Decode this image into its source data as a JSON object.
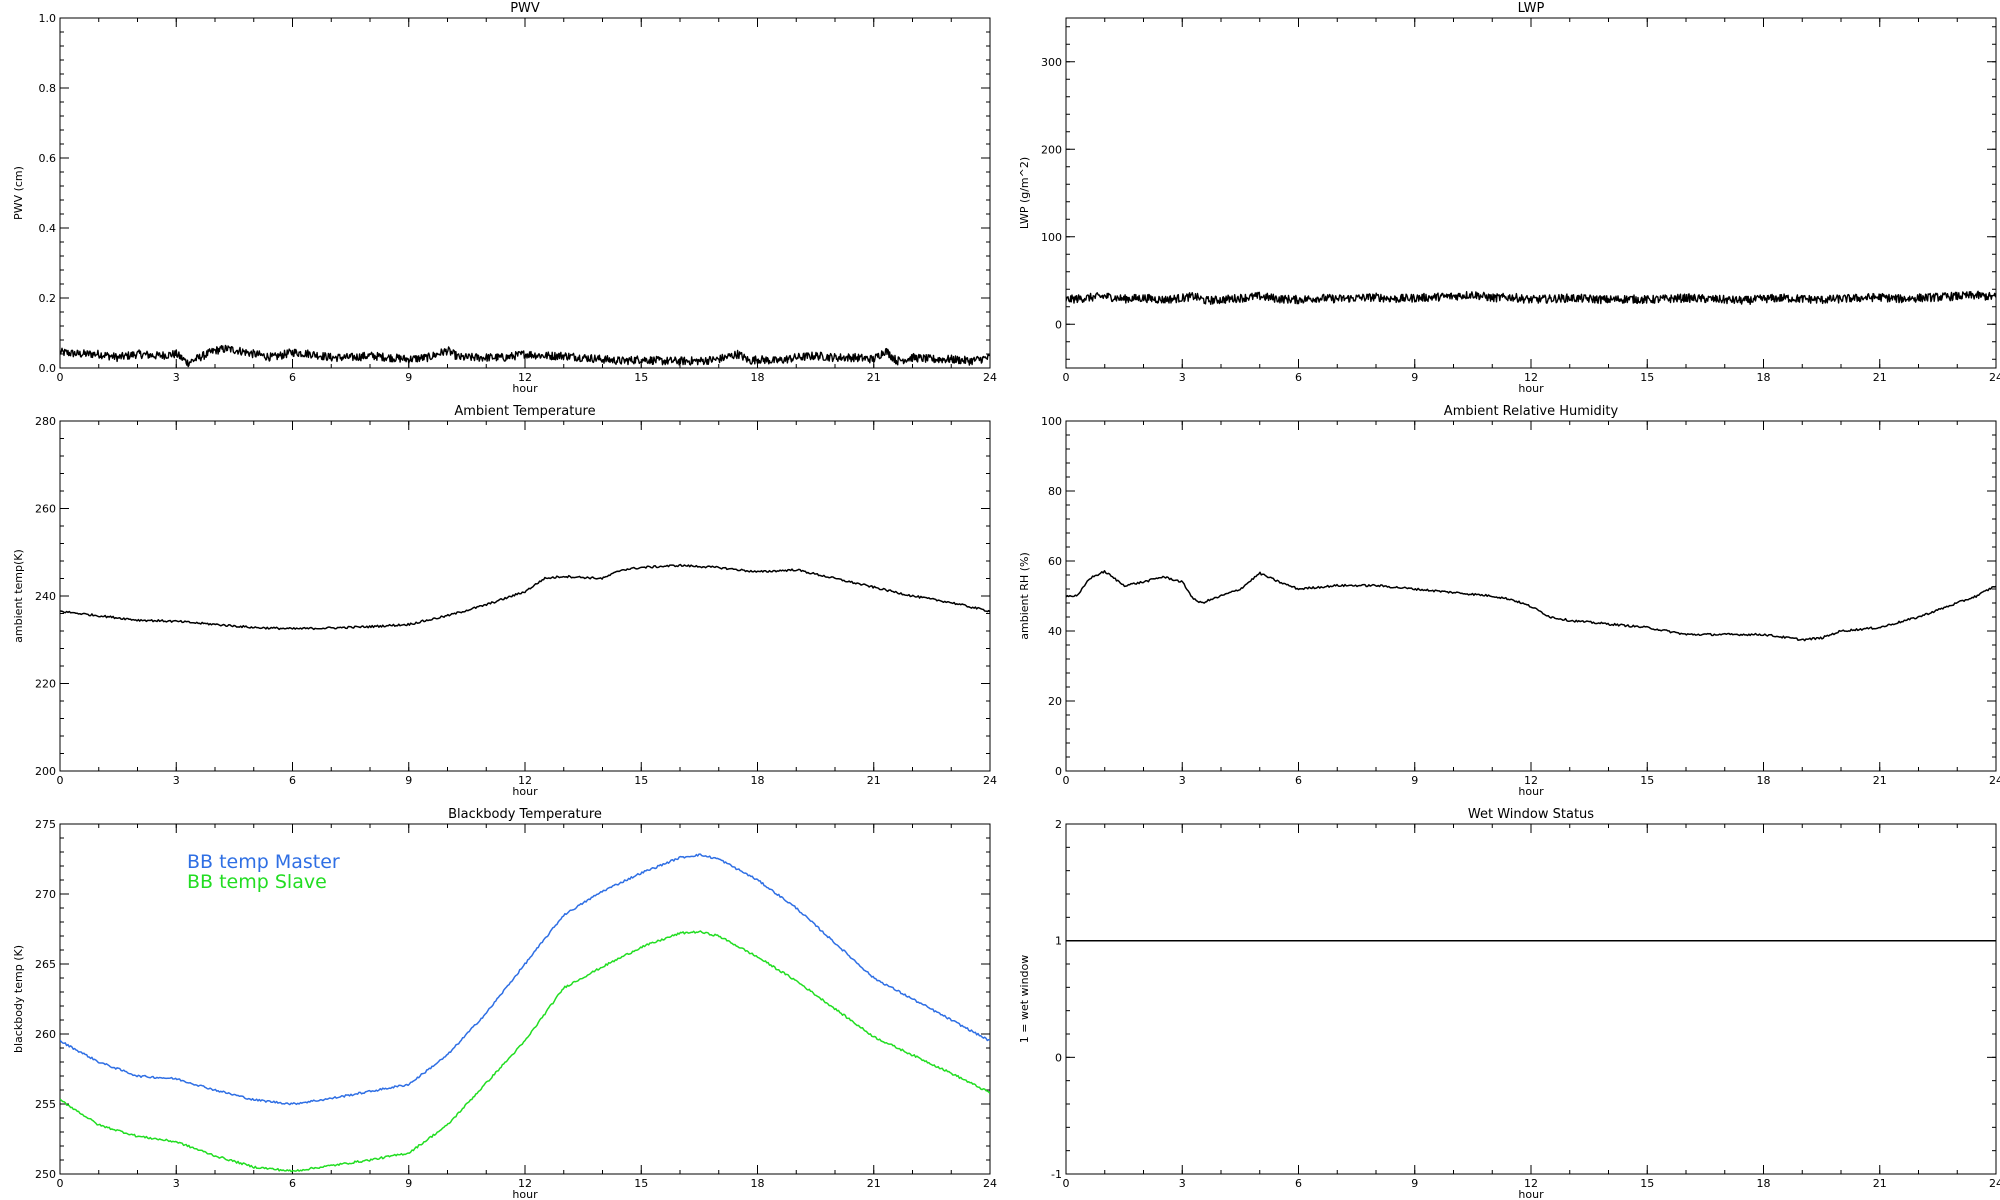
{
  "chart_data": [
    {
      "type": "line",
      "title": "PWV",
      "xlabel": "hour",
      "ylabel": "PWV (cm)",
      "xlim": [
        0,
        24
      ],
      "ylim": [
        0.0,
        1.0
      ],
      "xticks": [
        "0",
        "3",
        "6",
        "9",
        "12",
        "15",
        "18",
        "21",
        "24"
      ],
      "yticks": [
        "0.0",
        "0.2",
        "0.4",
        "0.6",
        "0.8",
        "1.0"
      ],
      "line_style": "noisy",
      "series": [
        {
          "color": "#000000",
          "x": [
            0,
            0.5,
            1,
            1.5,
            2,
            2.5,
            3,
            3.3,
            3.6,
            4,
            4.3,
            4.6,
            5,
            5.5,
            6,
            6.5,
            7,
            7.5,
            8,
            8.5,
            9,
            9.5,
            10,
            10.3,
            10.6,
            11,
            11.5,
            12,
            12.5,
            13,
            13.5,
            14,
            14.5,
            15,
            15.5,
            16,
            16.5,
            17,
            17.5,
            17.8,
            18,
            18.5,
            19,
            19.5,
            20,
            20.5,
            21,
            21.3,
            21.6,
            22,
            22.5,
            23,
            23.5,
            24
          ],
          "y": [
            0.045,
            0.04,
            0.04,
            0.03,
            0.04,
            0.035,
            0.04,
            0.015,
            0.03,
            0.05,
            0.055,
            0.05,
            0.04,
            0.03,
            0.045,
            0.04,
            0.03,
            0.03,
            0.035,
            0.03,
            0.025,
            0.03,
            0.05,
            0.03,
            0.03,
            0.03,
            0.03,
            0.04,
            0.035,
            0.035,
            0.03,
            0.025,
            0.02,
            0.025,
            0.02,
            0.02,
            0.02,
            0.025,
            0.04,
            0.02,
            0.025,
            0.02,
            0.03,
            0.035,
            0.03,
            0.03,
            0.025,
            0.05,
            0.02,
            0.03,
            0.025,
            0.025,
            0.02,
            0.03
          ]
        }
      ]
    },
    {
      "type": "line",
      "title": "LWP",
      "xlabel": "hour",
      "ylabel": "LWP (g/m^2)",
      "xlim": [
        0,
        24
      ],
      "ylim": [
        -50,
        350
      ],
      "xticks": [
        "0",
        "3",
        "6",
        "9",
        "12",
        "15",
        "18",
        "21",
        "24"
      ],
      "yticks": [
        "0",
        "100",
        "200",
        "300"
      ],
      "line_style": "noisy",
      "series": [
        {
          "color": "#000000",
          "x": [
            0,
            0.5,
            1,
            1.5,
            2,
            2.5,
            3,
            3.3,
            3.6,
            4,
            4.5,
            5,
            5.5,
            6,
            6.5,
            7,
            7.5,
            8,
            8.5,
            9,
            9.5,
            10,
            10.5,
            11,
            11.5,
            12,
            12.5,
            13,
            13.5,
            14,
            14.5,
            15,
            15.5,
            16,
            16.5,
            17,
            17.5,
            18,
            18.5,
            19,
            19.5,
            20,
            20.5,
            21,
            21.5,
            22,
            22.5,
            23,
            23.5,
            24
          ],
          "y": [
            28,
            30,
            32,
            29,
            30,
            28,
            30,
            32,
            27,
            28,
            30,
            32,
            29,
            28,
            30,
            29,
            30,
            31,
            29,
            30,
            31,
            32,
            34,
            30,
            31,
            28,
            29,
            30,
            29,
            28,
            29,
            28,
            29,
            30,
            29,
            28,
            27,
            29,
            30,
            29,
            28,
            29,
            30,
            31,
            29,
            30,
            31,
            32,
            33,
            31
          ]
        }
      ]
    },
    {
      "type": "line",
      "title": "Ambient Temperature",
      "xlabel": "hour",
      "ylabel": "ambient temp(K)",
      "xlim": [
        0,
        24
      ],
      "ylim": [
        200,
        280
      ],
      "xticks": [
        "0",
        "3",
        "6",
        "9",
        "12",
        "15",
        "18",
        "21",
        "24"
      ],
      "yticks": [
        "200",
        "220",
        "240",
        "260",
        "280"
      ],
      "line_style": "smooth",
      "series": [
        {
          "color": "#000000",
          "x": [
            0,
            1,
            2,
            3,
            4,
            5,
            6,
            7,
            8,
            9,
            10,
            11,
            12,
            12.5,
            13,
            14,
            14.5,
            15,
            16,
            17,
            18,
            19,
            20,
            20.5,
            21,
            22,
            23,
            24
          ],
          "y": [
            236.5,
            235.5,
            234.5,
            234.2,
            233.5,
            232.8,
            232.5,
            232.7,
            233,
            233.5,
            235.5,
            238,
            241,
            244,
            244.5,
            244,
            246,
            246.5,
            247,
            246.5,
            245.5,
            246,
            244,
            243,
            242,
            240,
            238.5,
            236.5
          ]
        }
      ]
    },
    {
      "type": "line",
      "title": "Ambient Relative Humidity",
      "xlabel": "hour",
      "ylabel": "ambient RH (%)",
      "xlim": [
        0,
        24
      ],
      "ylim": [
        0,
        100
      ],
      "xticks": [
        "0",
        "3",
        "6",
        "9",
        "12",
        "15",
        "18",
        "21",
        "24"
      ],
      "yticks": [
        "0",
        "20",
        "40",
        "60",
        "80",
        "100"
      ],
      "line_style": "smooth",
      "series": [
        {
          "color": "#000000",
          "x": [
            0,
            0.3,
            0.6,
            1,
            1.5,
            2,
            2.5,
            3,
            3.3,
            3.5,
            4,
            4.5,
            5,
            5.5,
            6,
            7,
            8,
            9,
            10,
            11,
            11.5,
            12,
            12.5,
            13,
            14,
            15,
            16,
            17,
            18,
            19,
            19.5,
            20,
            21,
            22,
            23,
            23.5,
            24
          ],
          "y": [
            50,
            50,
            55,
            57,
            53,
            54,
            55.5,
            54,
            49,
            48,
            50,
            52,
            56.5,
            54,
            52,
            53,
            53,
            52,
            51,
            50,
            49,
            47,
            44,
            43,
            42,
            41,
            39,
            39,
            39,
            37.5,
            38,
            40,
            41,
            44,
            48,
            50,
            53
          ]
        }
      ]
    },
    {
      "type": "line",
      "title": "Blackbody Temperature",
      "xlabel": "hour",
      "ylabel": "blackbody temp (K)",
      "xlim": [
        0,
        24
      ],
      "ylim": [
        250,
        275
      ],
      "xticks": [
        "0",
        "3",
        "6",
        "9",
        "12",
        "15",
        "18",
        "21",
        "24"
      ],
      "yticks": [
        "250",
        "255",
        "260",
        "265",
        "270",
        "275"
      ],
      "legend": "top-left",
      "line_style": "smooth",
      "series": [
        {
          "name": "BB temp Master",
          "color": "#2f6fe4",
          "x": [
            0,
            1,
            2,
            3,
            4,
            5,
            6,
            7,
            8,
            9,
            10,
            11,
            12,
            13,
            14,
            15,
            16,
            16.5,
            17,
            18,
            19,
            20,
            21,
            22,
            23,
            24
          ],
          "y": [
            259.5,
            258,
            257,
            256.8,
            256,
            255.3,
            255,
            255.4,
            255.9,
            256.4,
            258.5,
            261.5,
            265,
            268.5,
            270.2,
            271.5,
            272.6,
            272.8,
            272.5,
            271,
            269,
            266.5,
            264,
            262.5,
            261,
            259.5
          ]
        },
        {
          "name": "BB temp Slave",
          "color": "#22dd22",
          "x": [
            0,
            1,
            2,
            3,
            4,
            5,
            6,
            7,
            8,
            9,
            10,
            11,
            12,
            13,
            14,
            15,
            16,
            16.5,
            17,
            18,
            19,
            20,
            21,
            22,
            23,
            24
          ],
          "y": [
            255.3,
            253.5,
            252.7,
            252.3,
            251.3,
            250.5,
            250.2,
            250.6,
            251,
            251.5,
            253.5,
            256.5,
            259.5,
            263.3,
            264.8,
            266.2,
            267.2,
            267.3,
            267,
            265.5,
            263.8,
            261.8,
            259.8,
            258.5,
            257.2,
            255.8
          ]
        }
      ]
    },
    {
      "type": "line",
      "title": "Wet Window Status",
      "xlabel": "hour",
      "ylabel": "1 = wet window",
      "xlim": [
        0,
        24
      ],
      "ylim": [
        -1,
        2
      ],
      "xticks": [
        "0",
        "3",
        "6",
        "9",
        "12",
        "15",
        "18",
        "21",
        "24"
      ],
      "yticks": [
        "-1",
        "0",
        "1",
        "2"
      ],
      "line_style": "flat",
      "series": [
        {
          "color": "#000000",
          "x": [
            0,
            24
          ],
          "y": [
            1,
            1
          ]
        }
      ]
    }
  ]
}
